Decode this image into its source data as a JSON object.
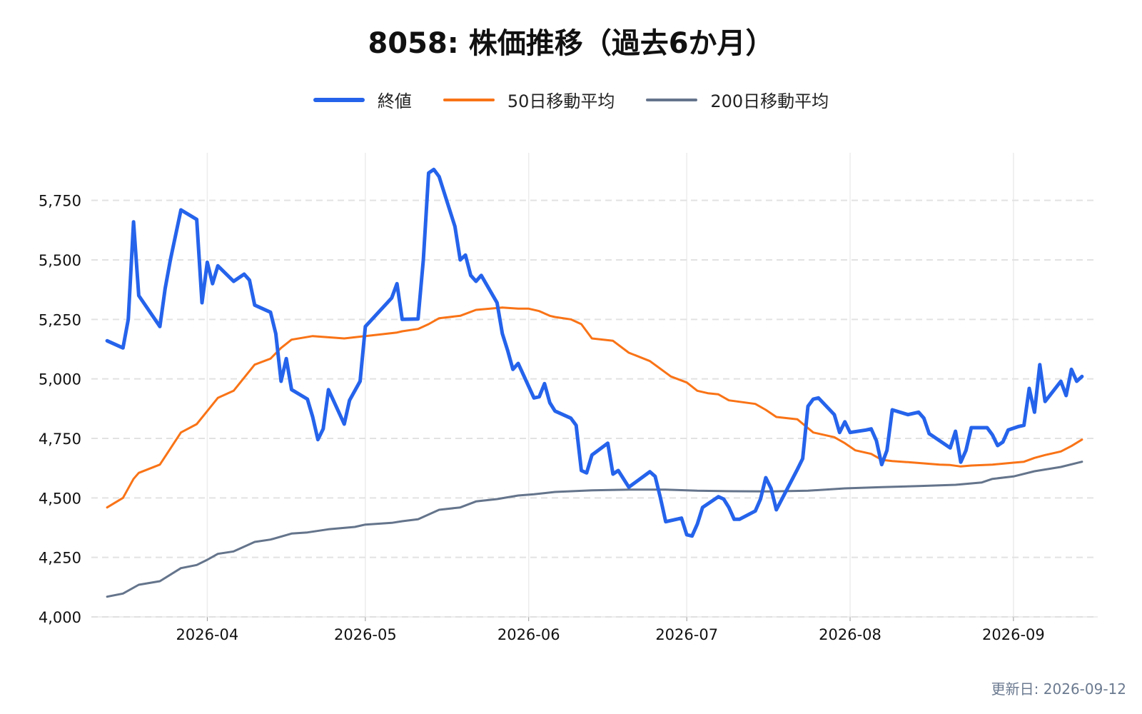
{
  "title": "8058: 株価推移（過去6か月）",
  "updated": "更新日: 2026-09-12",
  "legend": [
    {
      "name": "終値",
      "color": "#2563eb"
    },
    {
      "name": "50日移動平均",
      "color": "#f97316"
    },
    {
      "name": "200日移動平均",
      "color": "#64748b"
    }
  ],
  "chart_data": {
    "type": "line",
    "title": "8058: 株価推移（過去6か月）",
    "xlabel": "",
    "ylabel": "",
    "ylim": [
      4000,
      5950
    ],
    "xlim": [
      "2026-03-10",
      "2026-09-17"
    ],
    "yticks": [
      4000,
      4250,
      4500,
      4750,
      5000,
      5250,
      5500,
      5750
    ],
    "ytick_labels": [
      "4,000",
      "4,250",
      "4,500",
      "4,750",
      "5,000",
      "5,250",
      "5,500",
      "5,750"
    ],
    "xticks": [
      "2026-04-01",
      "2026-05-01",
      "2026-06-01",
      "2026-07-01",
      "2026-08-01",
      "2026-09-01"
    ],
    "xtick_labels": [
      "2026-04",
      "2026-05",
      "2026-06",
      "2026-07",
      "2026-08",
      "2026-09"
    ],
    "grid": "horizontal dashed, vertical light",
    "legend_position": "top-center",
    "series": [
      {
        "name": "終値",
        "color": "#2563eb",
        "points": [
          [
            "2026-03-13",
            5160
          ],
          [
            "2026-03-16",
            5130
          ],
          [
            "2026-03-17",
            5250
          ],
          [
            "2026-03-18",
            5660
          ],
          [
            "2026-03-19",
            5350
          ],
          [
            "2026-03-23",
            5220
          ],
          [
            "2026-03-24",
            5380
          ],
          [
            "2026-03-25",
            5500
          ],
          [
            "2026-03-27",
            5710
          ],
          [
            "2026-03-30",
            5670
          ],
          [
            "2026-03-31",
            5320
          ],
          [
            "2026-04-01",
            5490
          ],
          [
            "2026-04-02",
            5400
          ],
          [
            "2026-04-03",
            5475
          ],
          [
            "2026-04-06",
            5410
          ],
          [
            "2026-04-08",
            5440
          ],
          [
            "2026-04-09",
            5415
          ],
          [
            "2026-04-10",
            5310
          ],
          [
            "2026-04-13",
            5280
          ],
          [
            "2026-04-14",
            5190
          ],
          [
            "2026-04-15",
            4990
          ],
          [
            "2026-04-16",
            5085
          ],
          [
            "2026-04-17",
            4955
          ],
          [
            "2026-04-20",
            4915
          ],
          [
            "2026-04-21",
            4840
          ],
          [
            "2026-04-22",
            4745
          ],
          [
            "2026-04-23",
            4790
          ],
          [
            "2026-04-24",
            4955
          ],
          [
            "2026-04-27",
            4810
          ],
          [
            "2026-04-28",
            4910
          ],
          [
            "2026-04-30",
            4990
          ],
          [
            "2026-05-01",
            5220
          ],
          [
            "2026-05-06",
            5340
          ],
          [
            "2026-05-07",
            5400
          ],
          [
            "2026-05-08",
            5250
          ],
          [
            "2026-05-11",
            5252
          ],
          [
            "2026-05-12",
            5500
          ],
          [
            "2026-05-13",
            5865
          ],
          [
            "2026-05-14",
            5880
          ],
          [
            "2026-05-15",
            5850
          ],
          [
            "2026-05-18",
            5640
          ],
          [
            "2026-05-19",
            5500
          ],
          [
            "2026-05-20",
            5520
          ],
          [
            "2026-05-21",
            5435
          ],
          [
            "2026-05-22",
            5410
          ],
          [
            "2026-05-23",
            5435
          ],
          [
            "2026-05-26",
            5320
          ],
          [
            "2026-05-27",
            5190
          ],
          [
            "2026-05-28",
            5120
          ],
          [
            "2026-05-29",
            5040
          ],
          [
            "2026-05-30",
            5065
          ],
          [
            "2026-06-02",
            4920
          ],
          [
            "2026-06-03",
            4925
          ],
          [
            "2026-06-04",
            4980
          ],
          [
            "2026-06-05",
            4900
          ],
          [
            "2026-06-06",
            4865
          ],
          [
            "2026-06-09",
            4835
          ],
          [
            "2026-06-10",
            4805
          ],
          [
            "2026-06-11",
            4615
          ],
          [
            "2026-06-12",
            4605
          ],
          [
            "2026-06-13",
            4680
          ],
          [
            "2026-06-16",
            4730
          ],
          [
            "2026-06-17",
            4600
          ],
          [
            "2026-06-18",
            4615
          ],
          [
            "2026-06-20",
            4545
          ],
          [
            "2026-06-24",
            4610
          ],
          [
            "2026-06-25",
            4590
          ],
          [
            "2026-06-26",
            4500
          ],
          [
            "2026-06-27",
            4400
          ],
          [
            "2026-06-30",
            4415
          ],
          [
            "2026-07-01",
            4345
          ],
          [
            "2026-07-02",
            4340
          ],
          [
            "2026-07-03",
            4390
          ],
          [
            "2026-07-04",
            4460
          ],
          [
            "2026-07-07",
            4505
          ],
          [
            "2026-07-08",
            4495
          ],
          [
            "2026-07-09",
            4460
          ],
          [
            "2026-07-10",
            4410
          ],
          [
            "2026-07-11",
            4410
          ],
          [
            "2026-07-14",
            4445
          ],
          [
            "2026-07-15",
            4495
          ],
          [
            "2026-07-16",
            4585
          ],
          [
            "2026-07-17",
            4540
          ],
          [
            "2026-07-18",
            4450
          ],
          [
            "2026-07-22",
            4620
          ],
          [
            "2026-07-23",
            4665
          ],
          [
            "2026-07-24",
            4885
          ],
          [
            "2026-07-25",
            4915
          ],
          [
            "2026-07-26",
            4920
          ],
          [
            "2026-07-29",
            4850
          ],
          [
            "2026-07-30",
            4775
          ],
          [
            "2026-07-31",
            4820
          ],
          [
            "2026-08-01",
            4775
          ],
          [
            "2026-08-04",
            4785
          ],
          [
            "2026-08-05",
            4790
          ],
          [
            "2026-08-06",
            4740
          ],
          [
            "2026-08-07",
            4640
          ],
          [
            "2026-08-08",
            4700
          ],
          [
            "2026-08-09",
            4870
          ],
          [
            "2026-08-12",
            4850
          ],
          [
            "2026-08-14",
            4860
          ],
          [
            "2026-08-15",
            4835
          ],
          [
            "2026-08-16",
            4770
          ],
          [
            "2026-08-19",
            4725
          ],
          [
            "2026-08-20",
            4710
          ],
          [
            "2026-08-21",
            4780
          ],
          [
            "2026-08-22",
            4650
          ],
          [
            "2026-08-23",
            4700
          ],
          [
            "2026-08-24",
            4795
          ],
          [
            "2026-08-27",
            4795
          ],
          [
            "2026-08-28",
            4765
          ],
          [
            "2026-08-29",
            4720
          ],
          [
            "2026-08-30",
            4735
          ],
          [
            "2026-08-31",
            4785
          ],
          [
            "2026-09-02",
            4800
          ],
          [
            "2026-09-03",
            4805
          ],
          [
            "2026-09-04",
            4960
          ],
          [
            "2026-09-05",
            4860
          ],
          [
            "2026-09-06",
            5060
          ],
          [
            "2026-09-07",
            4905
          ],
          [
            "2026-09-10",
            4990
          ],
          [
            "2026-09-11",
            4930
          ],
          [
            "2026-09-12",
            5040
          ],
          [
            "2026-09-13",
            4990
          ],
          [
            "2026-09-14",
            5010
          ]
        ]
      },
      {
        "name": "50日移動平均",
        "color": "#f97316",
        "points": [
          [
            "2026-03-13",
            4460
          ],
          [
            "2026-03-16",
            4500
          ],
          [
            "2026-03-18",
            4580
          ],
          [
            "2026-03-19",
            4605
          ],
          [
            "2026-03-23",
            4640
          ],
          [
            "2026-03-27",
            4775
          ],
          [
            "2026-03-30",
            4810
          ],
          [
            "2026-04-01",
            4865
          ],
          [
            "2026-04-03",
            4920
          ],
          [
            "2026-04-06",
            4950
          ],
          [
            "2026-04-10",
            5060
          ],
          [
            "2026-04-13",
            5085
          ],
          [
            "2026-04-15",
            5130
          ],
          [
            "2026-04-17",
            5165
          ],
          [
            "2026-04-21",
            5180
          ],
          [
            "2026-04-27",
            5170
          ],
          [
            "2026-05-01",
            5180
          ],
          [
            "2026-05-07",
            5195
          ],
          [
            "2026-05-08",
            5200
          ],
          [
            "2026-05-11",
            5210
          ],
          [
            "2026-05-13",
            5230
          ],
          [
            "2026-05-15",
            5255
          ],
          [
            "2026-05-19",
            5265
          ],
          [
            "2026-05-22",
            5290
          ],
          [
            "2026-05-27",
            5300
          ],
          [
            "2026-05-30",
            5295
          ],
          [
            "2026-06-01",
            5295
          ],
          [
            "2026-06-03",
            5285
          ],
          [
            "2026-06-05",
            5265
          ],
          [
            "2026-06-06",
            5260
          ],
          [
            "2026-06-09",
            5250
          ],
          [
            "2026-06-11",
            5230
          ],
          [
            "2026-06-13",
            5170
          ],
          [
            "2026-06-17",
            5160
          ],
          [
            "2026-06-20",
            5110
          ],
          [
            "2026-06-24",
            5075
          ],
          [
            "2026-06-28",
            5010
          ],
          [
            "2026-07-01",
            4985
          ],
          [
            "2026-07-03",
            4950
          ],
          [
            "2026-07-05",
            4940
          ],
          [
            "2026-07-07",
            4935
          ],
          [
            "2026-07-09",
            4910
          ],
          [
            "2026-07-14",
            4895
          ],
          [
            "2026-07-16",
            4870
          ],
          [
            "2026-07-18",
            4840
          ],
          [
            "2026-07-22",
            4830
          ],
          [
            "2026-07-25",
            4775
          ],
          [
            "2026-07-29",
            4755
          ],
          [
            "2026-07-31",
            4730
          ],
          [
            "2026-08-02",
            4700
          ],
          [
            "2026-08-05",
            4685
          ],
          [
            "2026-08-07",
            4660
          ],
          [
            "2026-08-09",
            4655
          ],
          [
            "2026-08-12",
            4650
          ],
          [
            "2026-08-15",
            4645
          ],
          [
            "2026-08-18",
            4640
          ],
          [
            "2026-08-20",
            4638
          ],
          [
            "2026-08-22",
            4632
          ],
          [
            "2026-08-24",
            4636
          ],
          [
            "2026-08-28",
            4640
          ],
          [
            "2026-09-01",
            4648
          ],
          [
            "2026-09-03",
            4652
          ],
          [
            "2026-09-05",
            4668
          ],
          [
            "2026-09-07",
            4680
          ],
          [
            "2026-09-10",
            4695
          ],
          [
            "2026-09-12",
            4718
          ],
          [
            "2026-09-14",
            4745
          ]
        ]
      },
      {
        "name": "200日移動平均",
        "color": "#64748b",
        "points": [
          [
            "2026-03-13",
            4085
          ],
          [
            "2026-03-16",
            4098
          ],
          [
            "2026-03-19",
            4135
          ],
          [
            "2026-03-23",
            4150
          ],
          [
            "2026-03-27",
            4205
          ],
          [
            "2026-03-30",
            4218
          ],
          [
            "2026-04-01",
            4240
          ],
          [
            "2026-04-03",
            4265
          ],
          [
            "2026-04-06",
            4275
          ],
          [
            "2026-04-10",
            4315
          ],
          [
            "2026-04-13",
            4325
          ],
          [
            "2026-04-17",
            4350
          ],
          [
            "2026-04-20",
            4355
          ],
          [
            "2026-04-24",
            4368
          ],
          [
            "2026-04-29",
            4378
          ],
          [
            "2026-05-01",
            4388
          ],
          [
            "2026-05-06",
            4395
          ],
          [
            "2026-05-08",
            4402
          ],
          [
            "2026-05-11",
            4410
          ],
          [
            "2026-05-15",
            4450
          ],
          [
            "2026-05-19",
            4460
          ],
          [
            "2026-05-22",
            4485
          ],
          [
            "2026-05-26",
            4495
          ],
          [
            "2026-05-30",
            4510
          ],
          [
            "2026-06-02",
            4515
          ],
          [
            "2026-06-06",
            4525
          ],
          [
            "2026-06-13",
            4532
          ],
          [
            "2026-06-20",
            4535
          ],
          [
            "2026-06-27",
            4535
          ],
          [
            "2026-07-03",
            4530
          ],
          [
            "2026-07-10",
            4528
          ],
          [
            "2026-07-17",
            4527
          ],
          [
            "2026-07-24",
            4530
          ],
          [
            "2026-07-31",
            4540
          ],
          [
            "2026-08-07",
            4545
          ],
          [
            "2026-08-14",
            4550
          ],
          [
            "2026-08-21",
            4555
          ],
          [
            "2026-08-26",
            4565
          ],
          [
            "2026-08-28",
            4580
          ],
          [
            "2026-09-01",
            4590
          ],
          [
            "2026-09-05",
            4612
          ],
          [
            "2026-09-10",
            4630
          ],
          [
            "2026-09-14",
            4652
          ]
        ]
      }
    ]
  }
}
